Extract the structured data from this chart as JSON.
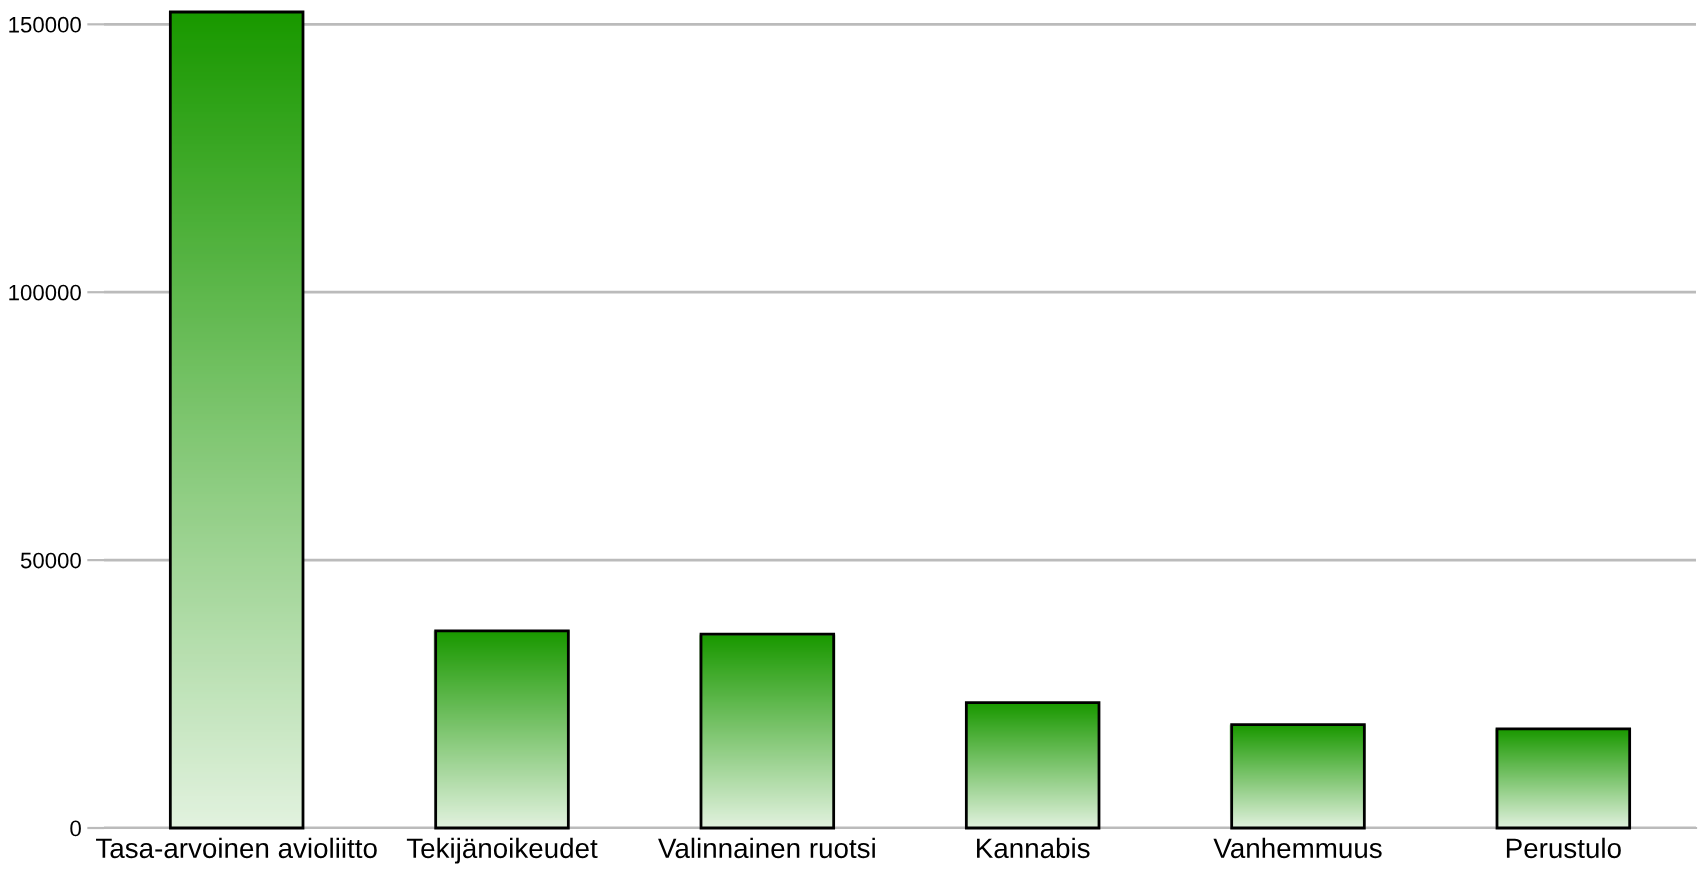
{
  "chart_data": {
    "type": "bar",
    "categories": [
      "Tasa-arvoinen avioliitto",
      "Tekijänoikeudet",
      "Valinnainen ruotsi",
      "Kannabis",
      "Vanhemmuus",
      "Perustulo"
    ],
    "values": [
      152300,
      36800,
      36200,
      23400,
      19300,
      18500
    ],
    "color": "#1a9900",
    "ylim": [
      0,
      152300
    ],
    "yticks": [
      0,
      50000,
      100000,
      150000
    ],
    "grid": "y"
  }
}
